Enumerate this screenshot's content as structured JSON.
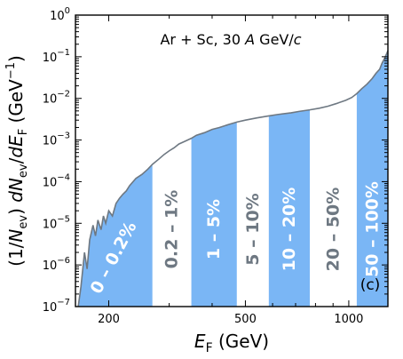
{
  "chart_data": {
    "type": "area",
    "annotation": "Ar + Sc, 30 A GeV/c",
    "panel_label": "(c)",
    "xlabel": "E_F (GeV)",
    "ylabel": "(1/N_ev) dN_ev/dE_F (GeV^-1)",
    "xscale": "log",
    "yscale": "log",
    "xlim": [
      160,
      1300
    ],
    "ylim": [
      1e-07,
      1
    ],
    "xticks": [
      200,
      500,
      1000
    ],
    "xtick_labels": [
      "200",
      "500",
      "1000"
    ],
    "yticks": [
      1e-07,
      1e-06,
      1e-05,
      0.0001,
      0.001,
      0.01,
      0.1,
      1
    ],
    "ytick_labels": [
      "10^-7",
      "10^-6",
      "10^-5",
      "10^-4",
      "10^-3",
      "10^-2",
      "10^-1",
      "10^0"
    ],
    "grid": false,
    "colors": {
      "band_fill": "#7ab6f5",
      "curve": "#6e7882",
      "label_on_band": "#ffffff",
      "label_on_white": "#6e7882"
    },
    "centrality_bands": [
      {
        "label": "0 – 0.2%",
        "range": [
          160,
          268
        ],
        "filled": true
      },
      {
        "label": "0.2 – 1%",
        "range": [
          268,
          348
        ],
        "filled": false
      },
      {
        "label": "1 – 5%",
        "range": [
          348,
          472
        ],
        "filled": true
      },
      {
        "label": "5 – 10%",
        "range": [
          472,
          585
        ],
        "filled": false
      },
      {
        "label": "10 – 20%",
        "range": [
          585,
          770
        ],
        "filled": true
      },
      {
        "label": "20 – 50%",
        "range": [
          770,
          1055
        ],
        "filled": false
      },
      {
        "label": "50 – 100%",
        "range": [
          1055,
          1300
        ],
        "filled": true
      }
    ],
    "series": [
      {
        "x": [
          163,
          166,
          170,
          173,
          176,
          180,
          183,
          186,
          190,
          193,
          196,
          200,
          205,
          210,
          215,
          220,
          225,
          230,
          240,
          250,
          260,
          268,
          280,
          290,
          300,
          310,
          320,
          335,
          348,
          360,
          380,
          400,
          420,
          450,
          472,
          500,
          540,
          585,
          620,
          680,
          720,
          770,
          820,
          870,
          920,
          980,
          1020,
          1055,
          1090,
          1130,
          1170,
          1200,
          1230,
          1250,
          1270,
          1290,
          1300
        ],
        "y": [
          1e-07,
          3e-07,
          2e-06,
          8e-07,
          4e-06,
          9e-06,
          5e-06,
          1.2e-05,
          7e-06,
          1.5e-05,
          1e-05,
          2e-05,
          1.5e-05,
          3e-05,
          4e-05,
          5e-05,
          6e-05,
          8e-05,
          0.00012,
          0.00015,
          0.0002,
          0.00026,
          0.00035,
          0.00045,
          0.00055,
          0.00065,
          0.0008,
          0.00095,
          0.0011,
          0.0013,
          0.0015,
          0.0018,
          0.002,
          0.0024,
          0.0027,
          0.003,
          0.0034,
          0.0038,
          0.0041,
          0.0045,
          0.0049,
          0.0053,
          0.0058,
          0.0065,
          0.0075,
          0.009,
          0.0105,
          0.013,
          0.017,
          0.022,
          0.03,
          0.04,
          0.05,
          0.07,
          0.09,
          0.12,
          0.14
        ]
      }
    ]
  }
}
